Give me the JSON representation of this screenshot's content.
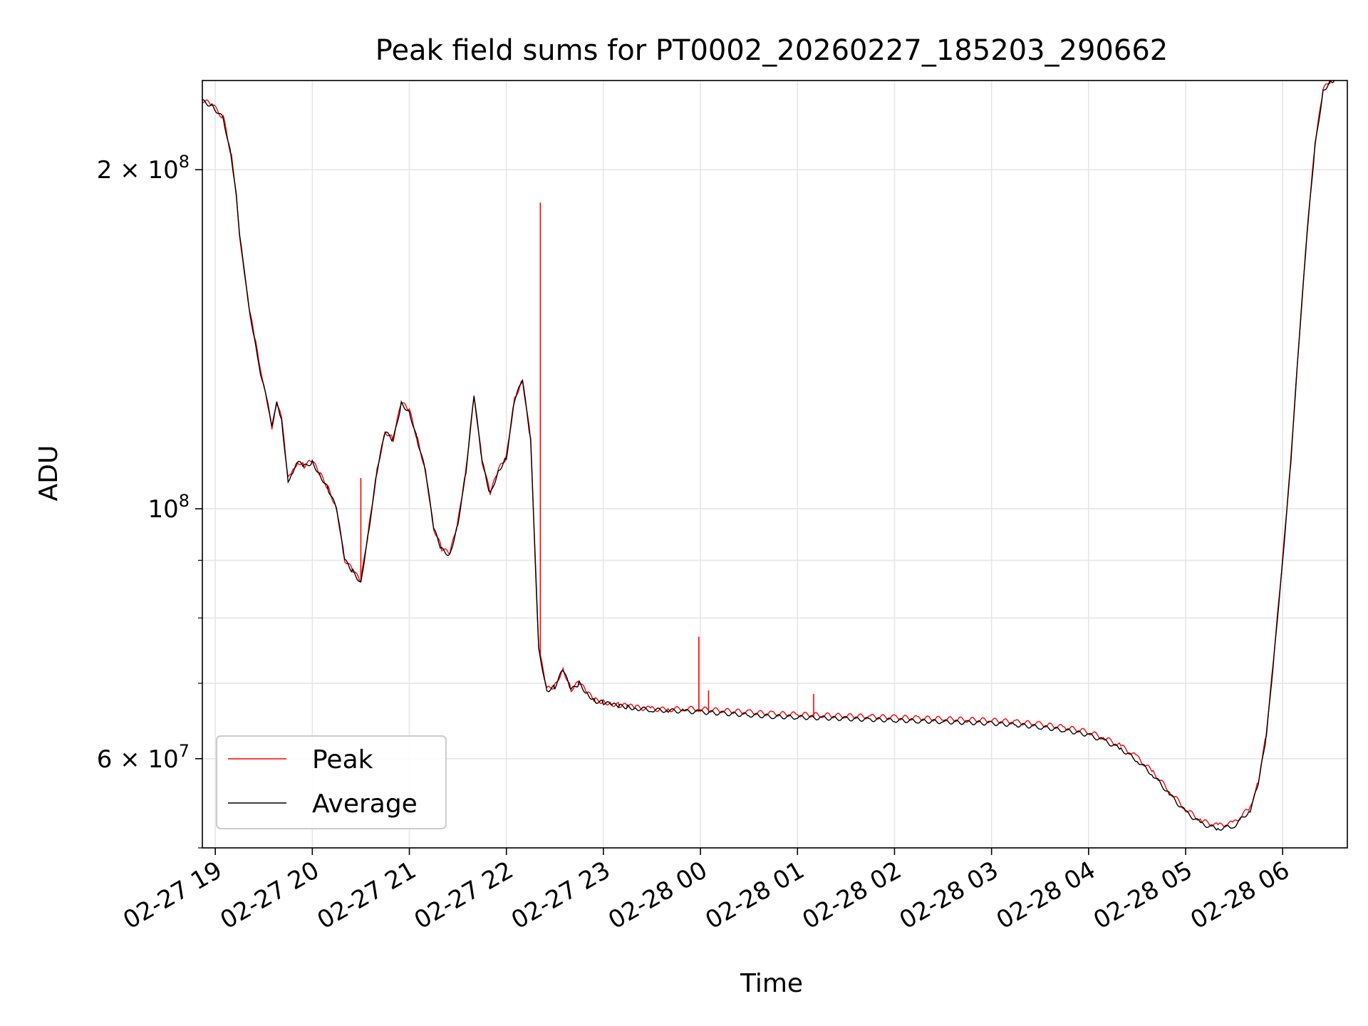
{
  "chart_data": {
    "type": "line",
    "title": "Peak field sums for PT0002_20260227_185203_290662",
    "xlabel": "Time",
    "ylabel": "ADU",
    "xscale": "time",
    "yscale": "log",
    "xlim": [
      "2026-02-27 18:52",
      "2026-02-28 06:40"
    ],
    "ylim": [
      50000000,
      240000000
    ],
    "xticks": [
      "02-27 19",
      "02-27 20",
      "02-27 21",
      "02-27 22",
      "02-27 23",
      "02-28 00",
      "02-28 01",
      "02-28 02",
      "02-28 03",
      "02-28 04",
      "02-28 05",
      "02-28 06"
    ],
    "xtick_values": [
      "2026-02-27 19:00",
      "2026-02-27 20:00",
      "2026-02-27 21:00",
      "2026-02-27 22:00",
      "2026-02-27 23:00",
      "2026-02-28 00:00",
      "2026-02-28 01:00",
      "2026-02-28 02:00",
      "2026-02-28 03:00",
      "2026-02-28 04:00",
      "2026-02-28 05:00",
      "2026-02-28 06:00"
    ],
    "ytick_major": [
      {
        "value": 60000000,
        "mantissa": "6",
        "base": "10",
        "exp": "7"
      },
      {
        "value": 100000000,
        "mantissa": "",
        "base": "10",
        "exp": "8"
      },
      {
        "value": 200000000,
        "mantissa": "2",
        "base": "10",
        "exp": "8"
      }
    ],
    "ytick_minor": [
      50000000,
      70000000,
      80000000,
      90000000
    ],
    "grid": true,
    "legend_position": "lower-left",
    "series": [
      {
        "name": "Peak",
        "color": "#ff0000"
      },
      {
        "name": "Average",
        "color": "#000000"
      }
    ],
    "x": [
      "2026-02-27 18:52",
      "2026-02-27 18:58",
      "2026-02-27 19:05",
      "2026-02-27 19:10",
      "2026-02-27 19:13",
      "2026-02-27 19:15",
      "2026-02-27 19:18",
      "2026-02-27 19:21",
      "2026-02-27 19:25",
      "2026-02-27 19:28",
      "2026-02-27 19:31",
      "2026-02-27 19:35",
      "2026-02-27 19:38",
      "2026-02-27 19:41",
      "2026-02-27 19:45",
      "2026-02-27 19:48",
      "2026-02-27 19:51",
      "2026-02-27 19:55",
      "2026-02-27 20:00",
      "2026-02-27 20:05",
      "2026-02-27 20:10",
      "2026-02-27 20:15",
      "2026-02-27 20:20",
      "2026-02-27 20:25",
      "2026-02-27 20:30",
      "2026-02-27 20:35",
      "2026-02-27 20:40",
      "2026-02-27 20:45",
      "2026-02-27 20:50",
      "2026-02-27 20:55",
      "2026-02-27 21:00",
      "2026-02-27 21:05",
      "2026-02-27 21:10",
      "2026-02-27 21:15",
      "2026-02-27 21:20",
      "2026-02-27 21:25",
      "2026-02-27 21:30",
      "2026-02-27 21:35",
      "2026-02-27 21:40",
      "2026-02-27 21:45",
      "2026-02-27 21:50",
      "2026-02-27 21:55",
      "2026-02-27 22:00",
      "2026-02-27 22:05",
      "2026-02-27 22:10",
      "2026-02-27 22:15",
      "2026-02-27 22:20",
      "2026-02-27 22:25",
      "2026-02-27 22:30",
      "2026-02-27 22:35",
      "2026-02-27 22:40",
      "2026-02-27 22:45",
      "2026-02-27 22:50",
      "2026-02-27 22:55",
      "2026-02-27 23:00",
      "2026-02-27 23:05",
      "2026-02-27 23:10",
      "2026-02-27 23:15",
      "2026-02-27 23:20",
      "2026-02-27 23:30",
      "2026-02-27 23:40",
      "2026-02-27 23:50",
      "2026-02-28 00:00",
      "2026-02-28 00:15",
      "2026-02-28 00:30",
      "2026-02-28 00:45",
      "2026-02-28 01:00",
      "2026-02-28 01:15",
      "2026-02-28 01:30",
      "2026-02-28 01:45",
      "2026-02-28 02:00",
      "2026-02-28 02:15",
      "2026-02-28 02:30",
      "2026-02-28 02:45",
      "2026-02-28 03:00",
      "2026-02-28 03:15",
      "2026-02-28 03:30",
      "2026-02-28 03:45",
      "2026-02-28 04:00",
      "2026-02-28 04:10",
      "2026-02-28 04:20",
      "2026-02-28 04:30",
      "2026-02-28 04:40",
      "2026-02-28 04:50",
      "2026-02-28 05:00",
      "2026-02-28 05:10",
      "2026-02-28 05:20",
      "2026-02-28 05:30",
      "2026-02-28 05:40",
      "2026-02-28 05:45",
      "2026-02-28 05:50",
      "2026-02-28 05:55",
      "2026-02-28 06:00",
      "2026-02-28 06:05",
      "2026-02-28 06:10",
      "2026-02-28 06:15",
      "2026-02-28 06:20",
      "2026-02-28 06:25",
      "2026-02-28 06:30",
      "2026-02-28 06:32"
    ],
    "average": [
      230000000,
      228000000,
      222000000,
      205000000,
      190000000,
      175000000,
      162000000,
      150000000,
      140000000,
      132000000,
      127000000,
      118000000,
      124000000,
      120000000,
      106000000,
      108000000,
      110000000,
      109000000,
      110000000,
      107000000,
      104000000,
      100000000,
      90000000,
      88000000,
      86000000,
      96000000,
      108000000,
      117000000,
      115000000,
      124000000,
      122000000,
      115000000,
      108000000,
      96000000,
      92000000,
      91000000,
      97000000,
      108000000,
      126000000,
      110000000,
      103000000,
      108000000,
      111000000,
      125000000,
      130000000,
      115000000,
      75000000,
      69000000,
      69500000,
      72000000,
      69000000,
      70000000,
      68500000,
      67500000,
      67300000,
      67000000,
      66800000,
      66700000,
      66500000,
      66300000,
      66200000,
      66100000,
      66000000,
      65800000,
      65600000,
      65400000,
      65300000,
      65200000,
      65100000,
      65000000,
      64900000,
      64800000,
      64700000,
      64600000,
      64500000,
      64300000,
      64000000,
      63600000,
      63000000,
      62200000,
      61200000,
      59800000,
      58000000,
      55800000,
      53800000,
      52500000,
      52000000,
      52300000,
      54000000,
      57000000,
      63000000,
      75000000,
      90000000,
      110000000,
      140000000,
      175000000,
      210000000,
      235000000,
      240000000,
      240000000
    ],
    "peak_spikes": [
      {
        "x": "2026-02-27 20:30",
        "value": 106500000
      },
      {
        "x": "2026-02-27 22:21",
        "value": 187000000
      },
      {
        "x": "2026-02-27 23:59",
        "value": 77000000
      },
      {
        "x": "2026-02-28 00:05",
        "value": 69000000
      },
      {
        "x": "2026-02-28 01:10",
        "value": 68500000
      },
      {
        "x": "2026-02-28 04:40",
        "value": 58000000
      }
    ]
  }
}
